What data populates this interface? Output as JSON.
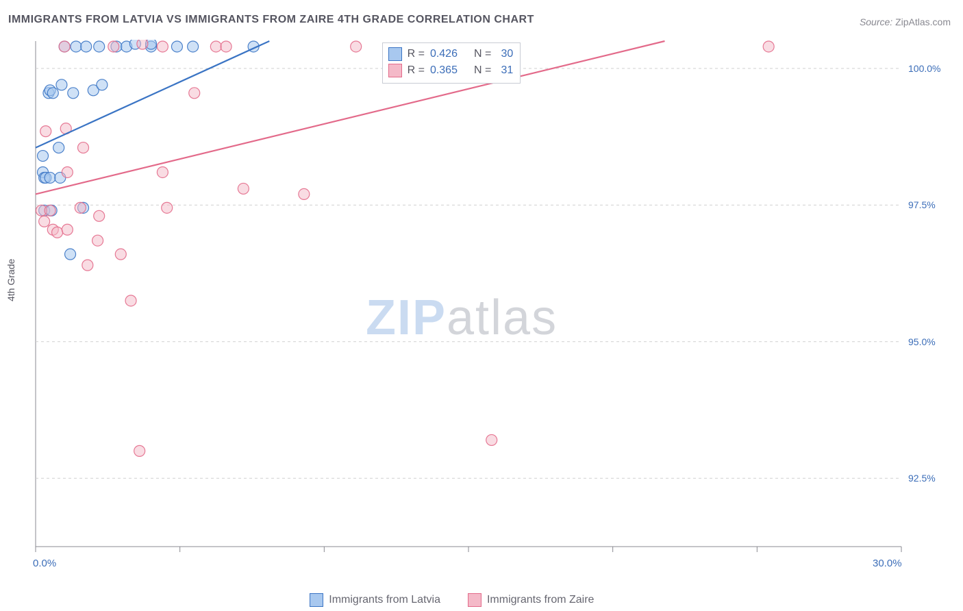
{
  "title": "IMMIGRANTS FROM LATVIA VS IMMIGRANTS FROM ZAIRE 4TH GRADE CORRELATION CHART",
  "source_label": "Source:",
  "source_name": "ZipAtlas.com",
  "y_axis_label": "4th Grade",
  "watermark": {
    "zip": "ZIP",
    "atlas": "atlas"
  },
  "chart": {
    "type": "scatter-with-regression",
    "background_color": "#ffffff",
    "grid_color": "#d0d0d0",
    "axis_color": "#888890",
    "xlim": [
      0.0,
      30.0
    ],
    "ylim": [
      91.25,
      100.5
    ],
    "x_ticks": [
      0.0,
      30.0
    ],
    "x_tick_labels": [
      "0.0%",
      "30.0%"
    ],
    "x_minor_ticks": [
      5,
      10,
      15,
      20,
      25
    ],
    "y_ticks": [
      92.5,
      95.0,
      97.5,
      100.0
    ],
    "y_tick_labels": [
      "92.5%",
      "95.0%",
      "97.5%",
      "100.0%"
    ],
    "marker_radius": 8,
    "marker_stroke_width": 1.2,
    "line_width": 2.2,
    "series": [
      {
        "name": "Immigrants from Latvia",
        "fill": "#a8c8ef",
        "stroke": "#3a74c4",
        "fill_opacity": 0.55,
        "R": 0.426,
        "N": 30,
        "regression": {
          "x1": 0.0,
          "y1": 98.55,
          "x2": 8.1,
          "y2": 100.5
        },
        "points": [
          [
            0.25,
            98.4
          ],
          [
            0.25,
            98.1
          ],
          [
            0.3,
            97.4
          ],
          [
            0.3,
            98.0
          ],
          [
            0.35,
            98.0
          ],
          [
            0.45,
            99.55
          ],
          [
            0.5,
            98.0
          ],
          [
            0.55,
            97.4
          ],
          [
            0.5,
            99.6
          ],
          [
            0.6,
            99.55
          ],
          [
            0.8,
            98.55
          ],
          [
            0.85,
            98.0
          ],
          [
            0.9,
            99.7
          ],
          [
            1.0,
            100.4
          ],
          [
            1.2,
            96.6
          ],
          [
            1.3,
            99.55
          ],
          [
            1.4,
            100.4
          ],
          [
            1.65,
            97.45
          ],
          [
            1.75,
            100.4
          ],
          [
            2.0,
            99.6
          ],
          [
            2.2,
            100.4
          ],
          [
            2.3,
            99.7
          ],
          [
            2.8,
            100.4
          ],
          [
            3.15,
            100.4
          ],
          [
            3.45,
            100.45
          ],
          [
            4.0,
            100.4
          ],
          [
            4.0,
            100.45
          ],
          [
            4.9,
            100.4
          ],
          [
            5.45,
            100.4
          ],
          [
            7.55,
            100.4
          ]
        ]
      },
      {
        "name": "Immigrants from Zaire",
        "fill": "#f4b9c8",
        "stroke": "#e36a8a",
        "fill_opacity": 0.5,
        "R": 0.365,
        "N": 31,
        "regression": {
          "x1": 0.0,
          "y1": 97.7,
          "x2": 21.8,
          "y2": 100.5
        },
        "points": [
          [
            0.2,
            97.4
          ],
          [
            0.3,
            97.2
          ],
          [
            0.35,
            98.85
          ],
          [
            0.5,
            97.4
          ],
          [
            0.6,
            97.05
          ],
          [
            0.75,
            97.0
          ],
          [
            1.0,
            100.4
          ],
          [
            1.1,
            98.1
          ],
          [
            1.05,
            98.9
          ],
          [
            1.1,
            97.05
          ],
          [
            1.55,
            97.45
          ],
          [
            1.65,
            98.55
          ],
          [
            1.8,
            96.4
          ],
          [
            2.15,
            96.85
          ],
          [
            2.2,
            97.3
          ],
          [
            2.7,
            100.4
          ],
          [
            2.95,
            96.6
          ],
          [
            3.3,
            95.75
          ],
          [
            3.6,
            93.0
          ],
          [
            3.7,
            100.45
          ],
          [
            4.4,
            100.4
          ],
          [
            4.4,
            98.1
          ],
          [
            4.55,
            97.45
          ],
          [
            5.5,
            99.55
          ],
          [
            6.25,
            100.4
          ],
          [
            6.6,
            100.4
          ],
          [
            7.2,
            97.8
          ],
          [
            9.3,
            97.7
          ],
          [
            11.1,
            100.4
          ],
          [
            15.8,
            93.2
          ],
          [
            25.4,
            100.4
          ]
        ]
      }
    ]
  },
  "stats_box_labels": {
    "R": "R =",
    "N": "N ="
  },
  "legend": {
    "items": [
      {
        "label": "Immigrants from Latvia",
        "fill": "#a8c8ef",
        "stroke": "#3a74c4"
      },
      {
        "label": "Immigrants from Zaire",
        "fill": "#f4b9c8",
        "stroke": "#e36a8a"
      }
    ]
  }
}
